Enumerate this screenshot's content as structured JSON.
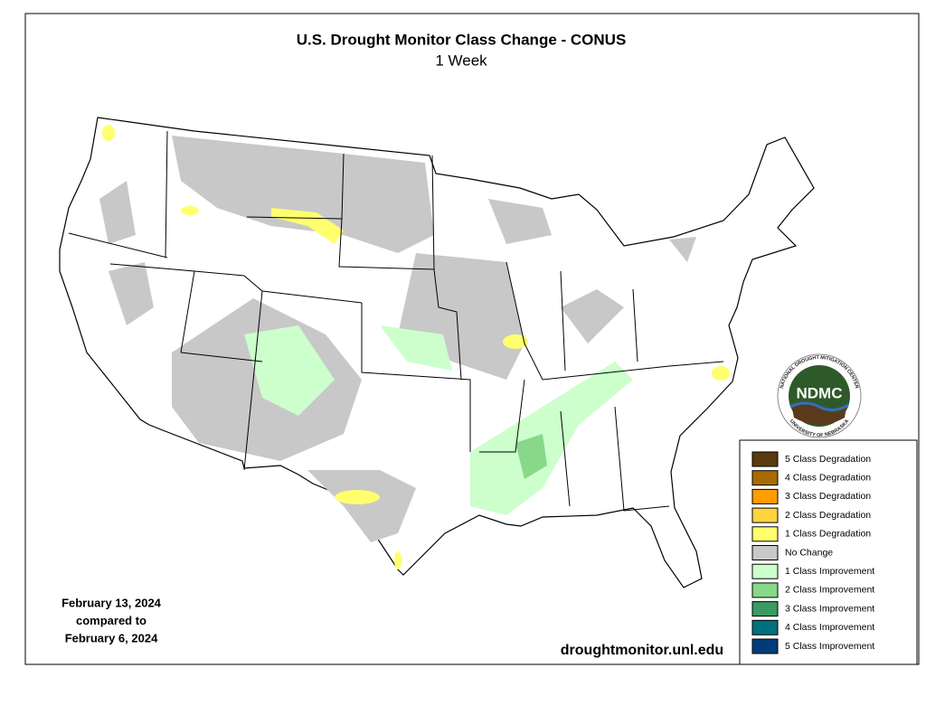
{
  "header": {
    "title": "U.S. Drought Monitor Class Change - CONUS",
    "subtitle": "1 Week"
  },
  "legend": {
    "items": [
      {
        "label": "5 Class Degradation",
        "color": "#5a3a0e"
      },
      {
        "label": "4 Class Degradation",
        "color": "#a86b00"
      },
      {
        "label": "3 Class Degradation",
        "color": "#ff9c00"
      },
      {
        "label": "2 Class Degradation",
        "color": "#ffd43f"
      },
      {
        "label": "1 Class Degradation",
        "color": "#ffff6e"
      },
      {
        "label": "No Change",
        "color": "#c8c8c8"
      },
      {
        "label": "1 Class Improvement",
        "color": "#ccffcc"
      },
      {
        "label": "2 Class Improvement",
        "color": "#88d88a"
      },
      {
        "label": "3 Class Improvement",
        "color": "#3a9a62"
      },
      {
        "label": "4 Class Improvement",
        "color": "#00707c"
      },
      {
        "label": "5 Class Improvement",
        "color": "#003c7a"
      }
    ]
  },
  "dates": {
    "lines": [
      "February 13, 2024",
      "compared to",
      "February 6, 2024"
    ]
  },
  "source": "droughtmonitor.unl.edu",
  "logo": {
    "text": "NDMC",
    "ring_top": "NATIONAL DROUGHT MITIGATION CENTER",
    "ring_bottom": "UNIVERSITY OF NEBRASKA"
  }
}
